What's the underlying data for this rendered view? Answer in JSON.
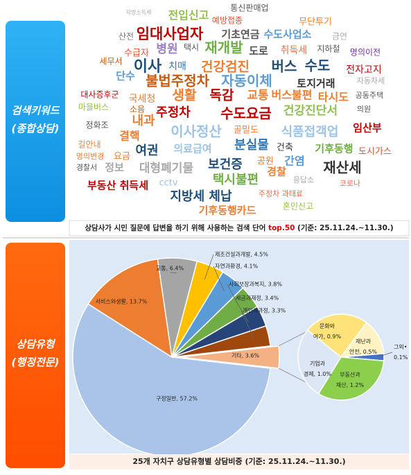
{
  "keywords": {
    "label": [
      "검색키워드",
      "(종합상담)"
    ],
    "words": [
      "통신판매업",
      "지방소득세",
      "전입신고",
      "예방접종",
      "무단투기",
      "산전",
      "임대사업자",
      "기초연금",
      "수도사업소",
      "금연",
      "수급자",
      "병원",
      "택시",
      "재개발",
      "도로",
      "취득세",
      "지하철",
      "명의이전",
      "세무서",
      "이사",
      "치매",
      "건강검진",
      "버스",
      "수도",
      "전자고지",
      "단수",
      "불법주정차",
      "자동이체",
      "토지거래",
      "자동차세",
      "대사증후군",
      "국세청",
      "생활",
      "독감",
      "교통",
      "버스불편",
      "타시도",
      "공동주택",
      "마을버스",
      "소음",
      "내과",
      "주정차",
      "수도요금",
      "건강진단서",
      "의원",
      "정화조",
      "결핵",
      "이사정산",
      "골밀도",
      "식품접객업",
      "임산부",
      "길안내",
      "분실물",
      "건축",
      "기후동행",
      "명의변경",
      "요금",
      "여권",
      "의료급여",
      "도시가스",
      "간염",
      "경찰서",
      "정보",
      "대형폐기물",
      "보건증",
      "공원",
      "재산세",
      "경찰",
      "부동산 취득세",
      "cctv",
      "택시불편",
      "응답소",
      "코로나",
      "지방세 체납",
      "주정차 과태료",
      "기후동행카드",
      "혼인신고"
    ],
    "caption": [
      "상담사가 시민 질문에 답변을 하기 위해 사용하는 검색 단어 ",
      "top.50",
      " (기준: 25.11.24.~11.30.)"
    ]
  },
  "consult_types": {
    "label": [
      "상담유형",
      "(행정전문)"
    ],
    "caption": "25개 자치구 상담유형별 상담비중 (기준: 25.11.24.~11.30.)"
  },
  "chart_data": [
    {
      "type": "pie",
      "values": [
        57.2,
        13.7,
        6.4,
        4.5,
        4.1,
        3.8,
        3.4,
        3.3,
        3.6
      ],
      "colors": [
        "#a9c4e8",
        "#ed7d31",
        "#a5a5a5",
        "#ffc000",
        "#5b9bd5",
        "#70ad47",
        "#264478",
        "#9e480e",
        "#f4b183"
      ],
      "value_labels": [
        "구정일반, 57.2%",
        "서비스와생활, 13.7%",
        "교통, 6.4%",
        "제조건설과개발, 4.5%",
        "자연과환경, 4.1%",
        "사회보장과복지, 3.8%",
        "세금과재정, 3.4%",
        "개인과과정, 3.3%",
        "기타, 3.6%"
      ]
    },
    {
      "type": "pie",
      "values": [
        0.1,
        1.2,
        1.0,
        0.9,
        0.5
      ],
      "colors": [
        "#4472c4",
        "#8ccf4d",
        "#dce6f4",
        "#ffe27a",
        "#fff3c4"
      ],
      "value_labels": [
        [
          "그외•",
          "0.1%"
        ],
        [
          "부동산과",
          "재산, 1.2%"
        ],
        [
          "기업과",
          "경제, 1.0%"
        ],
        [
          "문화와",
          "여가, 0.9%"
        ],
        [
          "재난과",
          "안전, 0.5%"
        ]
      ]
    }
  ]
}
